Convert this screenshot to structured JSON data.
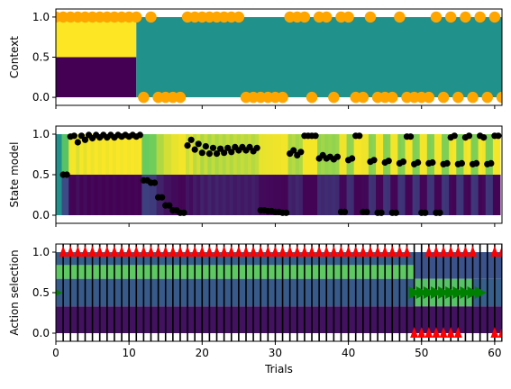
{
  "chart_data": [
    {
      "type": "scatter",
      "ylabel": "Context",
      "xlim": [
        0,
        61
      ],
      "ylim": [
        -0.1,
        1.1
      ],
      "yticks": [
        0.0,
        0.5,
        1.0
      ],
      "ytick_labels": [
        "0.0",
        "0.5",
        "1.0"
      ],
      "grid": false,
      "heatmap_background": "viridis: rows y 0–0.5 and 0.5–1.0; trials 0–11 bottom row dark purple, top row yellow; trials 11–61 both rows teal",
      "marker_color": "#ffa500",
      "series": [
        {
          "x": [
            0,
            1,
            2,
            3,
            4,
            5,
            6,
            7,
            8,
            9,
            10,
            11,
            12,
            13,
            14,
            15,
            16,
            17,
            18,
            19,
            20,
            21,
            22,
            23,
            24,
            25,
            26,
            27,
            28,
            29,
            30,
            31,
            32,
            33,
            34,
            35,
            36,
            37,
            38,
            39,
            40,
            41,
            42,
            43,
            44,
            45,
            46,
            47,
            48,
            49,
            50,
            51,
            52,
            53,
            54,
            55,
            56,
            57,
            58,
            59,
            60,
            61
          ],
          "y": [
            1,
            1,
            1,
            1,
            1,
            1,
            1,
            1,
            1,
            1,
            1,
            1,
            0,
            1,
            0,
            0,
            0,
            0,
            1,
            1,
            1,
            1,
            1,
            1,
            1,
            1,
            0,
            0,
            0,
            0,
            0,
            0,
            1,
            1,
            1,
            0,
            1,
            1,
            0,
            1,
            1,
            0,
            0,
            1,
            0,
            0,
            0,
            1,
            0,
            0,
            0,
            0,
            1,
            0,
            1,
            0,
            1,
            0,
            1,
            0,
            1,
            0
          ]
        }
      ]
    },
    {
      "type": "scatter",
      "ylabel": "State model",
      "xlim": [
        0,
        61
      ],
      "ylim": [
        -0.1,
        1.1
      ],
      "yticks": [
        0.0,
        0.5,
        1.0
      ],
      "ytick_labels": [
        "0.0",
        "0.5",
        "1.0"
      ],
      "grid": false,
      "heatmap_background": "viridis: upper band (0.5–1.0) = posterior of state 1, lower band (0.0–0.5) = 1 − posterior",
      "marker_color": "#000000",
      "series": [
        {
          "name": "",
          "x": [
            1,
            1.5,
            2,
            2.5,
            3,
            3.5,
            4,
            4.5,
            5,
            5.5,
            6,
            6.5,
            7,
            7.5,
            8,
            8.5,
            9,
            9.5,
            10,
            10.5,
            11,
            11.5,
            12,
            12.5,
            13,
            13.5,
            14,
            14.5,
            15,
            15.5,
            16,
            16.5,
            17,
            17.5,
            18,
            18.5,
            19,
            19.5,
            20,
            20.5,
            21,
            21.5,
            22,
            22.5,
            23,
            23.5,
            24,
            24.5,
            25,
            25.5,
            26,
            26.5,
            27,
            27.5,
            28,
            28.5,
            29,
            29.5,
            30,
            30.5,
            31,
            31.5,
            32,
            32.5,
            33,
            33.5,
            34,
            34.5,
            35,
            35.5,
            36,
            36.5,
            37,
            37.5,
            38,
            38.5,
            39,
            39.5,
            40,
            40.5,
            41,
            41.5,
            42,
            42.5,
            43,
            43.5,
            44,
            44.5,
            45,
            45.5,
            46,
            46.5,
            47,
            47.5,
            48,
            48.5,
            49,
            49.5,
            50,
            50.5,
            51,
            51.5,
            52,
            52.5,
            53,
            53.5,
            54,
            54.5,
            55,
            55.5,
            56,
            56.5,
            57,
            57.5,
            58,
            58.5,
            59,
            59.5,
            60,
            60.5
          ],
          "y": [
            0.5,
            0.5,
            0.97,
            0.98,
            0.9,
            0.98,
            0.93,
            0.99,
            0.95,
            0.99,
            0.96,
            0.99,
            0.96,
            0.99,
            0.96,
            0.99,
            0.97,
            0.99,
            0.97,
            0.99,
            0.97,
            0.99,
            0.43,
            0.43,
            0.4,
            0.4,
            0.22,
            0.22,
            0.12,
            0.12,
            0.06,
            0.06,
            0.03,
            0.03,
            0.86,
            0.93,
            0.81,
            0.88,
            0.77,
            0.85,
            0.76,
            0.83,
            0.76,
            0.82,
            0.77,
            0.83,
            0.78,
            0.84,
            0.8,
            0.84,
            0.8,
            0.84,
            0.79,
            0.83,
            0.06,
            0.06,
            0.05,
            0.05,
            0.04,
            0.04,
            0.03,
            0.03,
            0.76,
            0.8,
            0.74,
            0.78,
            0.98,
            0.98,
            0.98,
            0.98,
            0.7,
            0.74,
            0.7,
            0.72,
            0.69,
            0.72,
            0.04,
            0.04,
            0.68,
            0.7,
            0.98,
            0.98,
            0.04,
            0.04,
            0.66,
            0.68,
            0.03,
            0.03,
            0.65,
            0.67,
            0.03,
            0.03,
            0.64,
            0.66,
            0.97,
            0.97,
            0.63,
            0.65,
            0.03,
            0.03,
            0.64,
            0.65,
            0.03,
            0.03,
            0.63,
            0.64,
            0.96,
            0.98,
            0.63,
            0.64,
            0.96,
            0.98,
            0.63,
            0.64,
            0.98,
            0.96,
            0.63,
            0.64,
            0.98,
            0.98
          ]
        }
      ]
    },
    {
      "type": "scatter",
      "ylabel": "Action selection",
      "xlabel": "Trials",
      "xlim": [
        0,
        61
      ],
      "ylim": [
        -0.1,
        1.1
      ],
      "yticks": [
        0.0,
        0.5,
        1.0
      ],
      "ytick_labels": [
        "0.0",
        "0.5",
        "1.0"
      ],
      "xticks": [
        0,
        10,
        20,
        30,
        40,
        50,
        60
      ],
      "xtick_labels": [
        "0",
        "10",
        "20",
        "30",
        "40",
        "50",
        "60"
      ],
      "grid": false,
      "heatmap_background": "viridis: three bands (bottom, middle, top) with action probabilities; trials 0–49 and 49–61 differ",
      "vertical_lines": "black line at every trial",
      "series": [
        {
          "name": "",
          "marker": "red-triangle",
          "color": "#ff0000",
          "x": [
            1,
            2,
            3,
            4,
            5,
            6,
            7,
            8,
            9,
            10,
            11,
            12,
            13,
            14,
            15,
            16,
            17,
            18,
            19,
            20,
            21,
            22,
            23,
            24,
            25,
            26,
            27,
            28,
            29,
            30,
            31,
            32,
            33,
            34,
            35,
            36,
            37,
            38,
            39,
            40,
            41,
            42,
            43,
            44,
            45,
            46,
            47,
            48,
            51,
            52,
            53,
            54,
            55,
            56,
            57,
            60,
            61
          ],
          "y": [
            1,
            1,
            1,
            1,
            1,
            1,
            1,
            1,
            1,
            1,
            1,
            1,
            1,
            1,
            1,
            1,
            1,
            1,
            1,
            1,
            1,
            1,
            1,
            1,
            1,
            1,
            1,
            1,
            1,
            1,
            1,
            1,
            1,
            1,
            1,
            1,
            1,
            1,
            1,
            1,
            1,
            1,
            1,
            1,
            1,
            1,
            1,
            1,
            1,
            1,
            1,
            1,
            1,
            1,
            1,
            1,
            1
          ]
        },
        {
          "name": "",
          "marker": "red-triangle",
          "color": "#ff0000",
          "x": [
            49,
            50,
            51,
            52,
            53,
            54,
            55,
            60,
            61
          ],
          "y": [
            0,
            0,
            0,
            0,
            0,
            0,
            0,
            0,
            0
          ]
        },
        {
          "name": "",
          "marker": "green-triangle",
          "color": "#008000",
          "x": [
            0,
            49,
            50,
            51,
            52,
            53,
            54,
            55,
            56,
            57,
            58
          ],
          "y": [
            0.5,
            0.5,
            0.5,
            0.5,
            0.5,
            0.5,
            0.5,
            0.5,
            0.5,
            0.5,
            0.5
          ]
        }
      ]
    }
  ]
}
